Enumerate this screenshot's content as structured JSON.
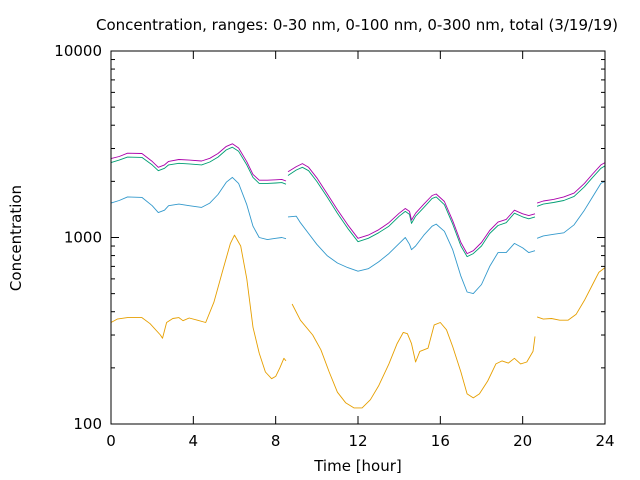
{
  "chart_data": {
    "type": "line",
    "title": "Concentration, ranges: 0-30 nm, 0-100 nm, 0-300 nm, total (3/19/19)",
    "xlabel": "Time [hour]",
    "ylabel": "Concentration",
    "xlim": [
      0,
      24
    ],
    "ylim": [
      100,
      10000
    ],
    "yscale": "log",
    "xticks": [
      0,
      4,
      8,
      12,
      16,
      20,
      24
    ],
    "xtick_labels": [
      "0",
      "4",
      "8",
      "12",
      "16",
      "20",
      "24"
    ],
    "yticks": [
      100,
      1000,
      10000
    ],
    "ytick_labels": [
      "100",
      "1000",
      "10000"
    ],
    "grid": false,
    "legend": "none",
    "series": [
      {
        "color": "#e69f00",
        "segments": [
          [
            [
              0,
              350
            ],
            [
              0.3,
              365
            ],
            [
              0.8,
              372
            ],
            [
              1.5,
              372
            ],
            [
              1.9,
              345
            ],
            [
              2.4,
              300
            ],
            [
              2.5,
              288
            ],
            [
              2.7,
              350
            ],
            [
              3.0,
              368
            ],
            [
              3.3,
              372
            ],
            [
              3.5,
              358
            ],
            [
              3.8,
              370
            ],
            [
              4.2,
              360
            ],
            [
              4.6,
              350
            ],
            [
              5.0,
              450
            ],
            [
              5.4,
              650
            ],
            [
              5.8,
              930
            ],
            [
              6.0,
              1030
            ],
            [
              6.3,
              900
            ],
            [
              6.6,
              600
            ],
            [
              6.9,
              330
            ],
            [
              7.2,
              240
            ],
            [
              7.5,
              190
            ],
            [
              7.8,
              175
            ],
            [
              8.0,
              180
            ],
            [
              8.2,
              200
            ],
            [
              8.4,
              225
            ],
            [
              8.5,
              218
            ]
          ],
          [
            [
              8.8,
              440
            ],
            [
              9.2,
              360
            ],
            [
              9.8,
              300
            ],
            [
              10.2,
              250
            ],
            [
              10.6,
              190
            ],
            [
              11.0,
              148
            ],
            [
              11.4,
              130
            ],
            [
              11.8,
              122
            ],
            [
              12.2,
              122
            ],
            [
              12.6,
              135
            ],
            [
              13.0,
              160
            ],
            [
              13.5,
              210
            ],
            [
              13.9,
              270
            ],
            [
              14.2,
              310
            ],
            [
              14.4,
              305
            ],
            [
              14.6,
              270
            ],
            [
              14.8,
              215
            ],
            [
              15.0,
              245
            ],
            [
              15.4,
              255
            ],
            [
              15.7,
              340
            ],
            [
              16.0,
              350
            ],
            [
              16.3,
              320
            ],
            [
              16.6,
              260
            ],
            [
              17.0,
              190
            ],
            [
              17.3,
              145
            ],
            [
              17.6,
              138
            ],
            [
              17.9,
              145
            ],
            [
              18.3,
              170
            ],
            [
              18.7,
              210
            ],
            [
              19.0,
              218
            ],
            [
              19.3,
              212
            ],
            [
              19.6,
              225
            ],
            [
              19.9,
              210
            ],
            [
              20.2,
              215
            ],
            [
              20.5,
              245
            ],
            [
              20.6,
              295
            ]
          ],
          [
            [
              20.7,
              375
            ],
            [
              21.0,
              365
            ],
            [
              21.4,
              368
            ],
            [
              21.8,
              360
            ],
            [
              22.2,
              360
            ],
            [
              22.6,
              388
            ],
            [
              23.0,
              460
            ],
            [
              23.4,
              560
            ],
            [
              23.7,
              650
            ],
            [
              24.0,
              690
            ]
          ]
        ]
      },
      {
        "color": "#3399cc",
        "segments": [
          [
            [
              0,
              1530
            ],
            [
              0.4,
              1580
            ],
            [
              0.8,
              1650
            ],
            [
              1.5,
              1640
            ],
            [
              2.0,
              1480
            ],
            [
              2.3,
              1360
            ],
            [
              2.6,
              1400
            ],
            [
              2.8,
              1480
            ],
            [
              3.3,
              1510
            ],
            [
              3.8,
              1480
            ],
            [
              4.4,
              1450
            ],
            [
              4.8,
              1530
            ],
            [
              5.2,
              1700
            ],
            [
              5.6,
              1980
            ],
            [
              5.9,
              2100
            ],
            [
              6.2,
              1950
            ],
            [
              6.6,
              1500
            ],
            [
              6.9,
              1150
            ],
            [
              7.2,
              1000
            ],
            [
              7.6,
              975
            ],
            [
              8.0,
              990
            ],
            [
              8.3,
              1000
            ],
            [
              8.5,
              985
            ]
          ],
          [
            [
              8.6,
              1290
            ],
            [
              9.0,
              1300
            ],
            [
              9.2,
              1200
            ],
            [
              9.6,
              1050
            ],
            [
              10.0,
              920
            ],
            [
              10.5,
              800
            ],
            [
              11.0,
              730
            ],
            [
              11.5,
              690
            ],
            [
              12.0,
              660
            ],
            [
              12.5,
              680
            ],
            [
              13.0,
              740
            ],
            [
              13.5,
              820
            ],
            [
              14.0,
              930
            ],
            [
              14.3,
              1000
            ],
            [
              14.5,
              920
            ],
            [
              14.6,
              860
            ],
            [
              14.8,
              900
            ],
            [
              15.2,
              1030
            ],
            [
              15.6,
              1150
            ],
            [
              15.8,
              1180
            ],
            [
              16.2,
              1080
            ],
            [
              16.6,
              860
            ],
            [
              17.0,
              620
            ],
            [
              17.3,
              510
            ],
            [
              17.6,
              500
            ],
            [
              18.0,
              560
            ],
            [
              18.4,
              700
            ],
            [
              18.8,
              830
            ],
            [
              19.2,
              830
            ],
            [
              19.6,
              930
            ],
            [
              20.0,
              880
            ],
            [
              20.3,
              830
            ],
            [
              20.6,
              850
            ]
          ],
          [
            [
              20.7,
              990
            ],
            [
              21.0,
              1020
            ],
            [
              21.5,
              1040
            ],
            [
              22.0,
              1060
            ],
            [
              22.5,
              1170
            ],
            [
              23.0,
              1400
            ],
            [
              23.4,
              1650
            ],
            [
              23.8,
              1950
            ],
            [
              24.0,
              2000
            ]
          ]
        ]
      },
      {
        "color": "#009e73",
        "segments": [
          [
            [
              0,
              2520
            ],
            [
              0.4,
              2600
            ],
            [
              0.8,
              2700
            ],
            [
              1.5,
              2690
            ],
            [
              2.0,
              2450
            ],
            [
              2.3,
              2280
            ],
            [
              2.6,
              2350
            ],
            [
              2.8,
              2450
            ],
            [
              3.3,
              2500
            ],
            [
              3.8,
              2480
            ],
            [
              4.4,
              2450
            ],
            [
              4.8,
              2540
            ],
            [
              5.2,
              2700
            ],
            [
              5.6,
              2950
            ],
            [
              5.9,
              3050
            ],
            [
              6.2,
              2900
            ],
            [
              6.6,
              2450
            ],
            [
              6.9,
              2100
            ],
            [
              7.2,
              1950
            ],
            [
              7.6,
              1950
            ],
            [
              8.0,
              1960
            ],
            [
              8.3,
              1970
            ],
            [
              8.5,
              1930
            ]
          ],
          [
            [
              8.6,
              2150
            ],
            [
              9.0,
              2300
            ],
            [
              9.3,
              2380
            ],
            [
              9.6,
              2280
            ],
            [
              10.0,
              2000
            ],
            [
              10.5,
              1650
            ],
            [
              11.0,
              1350
            ],
            [
              11.5,
              1120
            ],
            [
              12.0,
              950
            ],
            [
              12.5,
              990
            ],
            [
              13.0,
              1060
            ],
            [
              13.5,
              1150
            ],
            [
              14.0,
              1300
            ],
            [
              14.3,
              1380
            ],
            [
              14.5,
              1330
            ],
            [
              14.6,
              1190
            ],
            [
              14.8,
              1300
            ],
            [
              15.2,
              1450
            ],
            [
              15.6,
              1620
            ],
            [
              15.8,
              1650
            ],
            [
              16.2,
              1500
            ],
            [
              16.6,
              1180
            ],
            [
              17.0,
              900
            ],
            [
              17.3,
              790
            ],
            [
              17.6,
              820
            ],
            [
              18.0,
              900
            ],
            [
              18.4,
              1050
            ],
            [
              18.8,
              1160
            ],
            [
              19.2,
              1200
            ],
            [
              19.6,
              1350
            ],
            [
              20.0,
              1290
            ],
            [
              20.3,
              1260
            ],
            [
              20.6,
              1290
            ]
          ],
          [
            [
              20.7,
              1470
            ],
            [
              21.0,
              1510
            ],
            [
              21.5,
              1540
            ],
            [
              22.0,
              1580
            ],
            [
              22.5,
              1660
            ],
            [
              23.0,
              1870
            ],
            [
              23.4,
              2100
            ],
            [
              23.8,
              2350
            ],
            [
              24.0,
              2420
            ]
          ]
        ]
      },
      {
        "color": "#aa00aa",
        "segments": [
          [
            [
              0,
              2650
            ],
            [
              0.4,
              2720
            ],
            [
              0.8,
              2830
            ],
            [
              1.5,
              2820
            ],
            [
              2.0,
              2560
            ],
            [
              2.3,
              2380
            ],
            [
              2.6,
              2450
            ],
            [
              2.8,
              2560
            ],
            [
              3.3,
              2620
            ],
            [
              3.8,
              2600
            ],
            [
              4.4,
              2570
            ],
            [
              4.8,
              2660
            ],
            [
              5.2,
              2820
            ],
            [
              5.6,
              3080
            ],
            [
              5.9,
              3180
            ],
            [
              6.2,
              3020
            ],
            [
              6.6,
              2550
            ],
            [
              6.9,
              2180
            ],
            [
              7.2,
              2030
            ],
            [
              7.6,
              2030
            ],
            [
              8.0,
              2040
            ],
            [
              8.3,
              2050
            ],
            [
              8.5,
              2010
            ]
          ],
          [
            [
              8.6,
              2250
            ],
            [
              9.0,
              2400
            ],
            [
              9.3,
              2490
            ],
            [
              9.6,
              2380
            ],
            [
              10.0,
              2090
            ],
            [
              10.5,
              1720
            ],
            [
              11.0,
              1410
            ],
            [
              11.5,
              1170
            ],
            [
              12.0,
              990
            ],
            [
              12.5,
              1030
            ],
            [
              13.0,
              1100
            ],
            [
              13.5,
              1200
            ],
            [
              14.0,
              1350
            ],
            [
              14.3,
              1430
            ],
            [
              14.5,
              1380
            ],
            [
              14.6,
              1240
            ],
            [
              14.8,
              1350
            ],
            [
              15.2,
              1510
            ],
            [
              15.6,
              1680
            ],
            [
              15.8,
              1710
            ],
            [
              16.2,
              1560
            ],
            [
              16.6,
              1230
            ],
            [
              17.0,
              940
            ],
            [
              17.3,
              820
            ],
            [
              17.6,
              850
            ],
            [
              18.0,
              940
            ],
            [
              18.4,
              1090
            ],
            [
              18.8,
              1210
            ],
            [
              19.2,
              1250
            ],
            [
              19.6,
              1400
            ],
            [
              20.0,
              1340
            ],
            [
              20.3,
              1310
            ],
            [
              20.6,
              1340
            ]
          ],
          [
            [
              20.7,
              1530
            ],
            [
              21.0,
              1570
            ],
            [
              21.5,
              1600
            ],
            [
              22.0,
              1650
            ],
            [
              22.5,
              1730
            ],
            [
              23.0,
              1950
            ],
            [
              23.4,
              2190
            ],
            [
              23.8,
              2450
            ],
            [
              24.0,
              2520
            ]
          ]
        ]
      }
    ]
  }
}
